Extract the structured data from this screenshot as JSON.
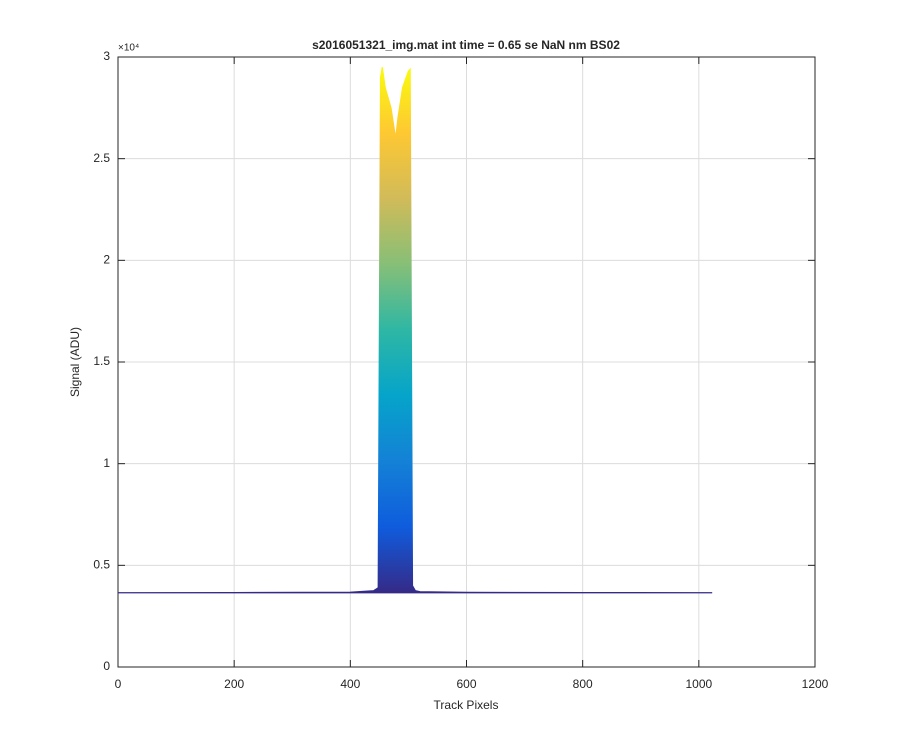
{
  "chart_data": {
    "type": "line",
    "title": "s2016051321_img.mat int time = 0.65 se  NaN nm BS02",
    "xlabel": "Track Pixels",
    "ylabel": "Signal (ADU)",
    "y_multiplier": "×10⁴",
    "x": [
      0,
      200,
      400,
      440,
      448,
      452,
      455,
      460,
      470,
      478,
      482,
      490,
      500,
      503,
      507,
      512,
      520,
      600,
      800,
      1023
    ],
    "series": [
      {
        "values": [
          3650,
          3660,
          3680,
          3750,
          3900,
          29000,
          29500,
          28500,
          27500,
          26000,
          27000,
          28500,
          29300,
          29400,
          4000,
          3750,
          3700,
          3670,
          3660,
          3650
        ]
      }
    ],
    "gradient_colors": [
      "#352a87",
      "#0f5cdd",
      "#1481d6",
      "#06a4ca",
      "#2eb7a4",
      "#87bf77",
      "#d1bb59",
      "#fec832",
      "#f9fb0e"
    ],
    "xlim": [
      0,
      1200
    ],
    "xticks": [
      0,
      200,
      400,
      600,
      800,
      1000,
      1200
    ],
    "ylim": [
      0,
      30000
    ],
    "yticks": [
      0,
      {
        "value": 5000,
        "label": "0.5"
      },
      {
        "value": 10000,
        "label": "1"
      },
      {
        "value": 15000,
        "label": "1.5"
      },
      {
        "value": 20000,
        "label": "2"
      },
      {
        "value": 25000,
        "label": "2.5"
      },
      {
        "value": 30000,
        "label": "3"
      }
    ],
    "grid": true
  }
}
